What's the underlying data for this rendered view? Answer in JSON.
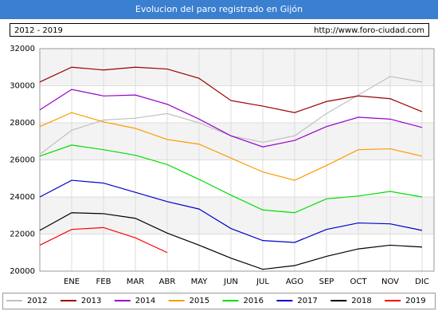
{
  "chart_data": {
    "type": "line",
    "title": "Evolucion del paro registrado en Gijón",
    "subtitle": "2012 - 2019",
    "source": "http://www.foro-ciudad.com",
    "categories": [
      null,
      "ENE",
      "FEB",
      "MAR",
      "ABR",
      "MAY",
      "JUN",
      "JUL",
      "AGO",
      "SEP",
      "OCT",
      "NOV",
      "DIC"
    ],
    "ylim": [
      20000,
      32000
    ],
    "yticks": [
      20000,
      22000,
      24000,
      26000,
      28000,
      30000,
      32000
    ],
    "grid": true,
    "legend": "bottom",
    "series": [
      {
        "name": "2012",
        "color": "#c0c0c0",
        "values": [
          26300,
          27600,
          28150,
          28250,
          28500,
          28000,
          27300,
          26950,
          27300,
          28500,
          29500,
          30500,
          30200
        ]
      },
      {
        "name": "2013",
        "color": "#990000",
        "values": [
          30200,
          31000,
          30850,
          31000,
          30900,
          30400,
          29200,
          28900,
          28550,
          29150,
          29450,
          29300,
          28600
        ]
      },
      {
        "name": "2014",
        "color": "#9900cc",
        "values": [
          28700,
          29800,
          29450,
          29500,
          29000,
          28200,
          27300,
          26700,
          27050,
          27800,
          28300,
          28200,
          27750
        ]
      },
      {
        "name": "2015",
        "color": "#ff9900",
        "values": [
          27800,
          28550,
          28050,
          27700,
          27100,
          26850,
          26100,
          25350,
          24900,
          25700,
          26550,
          26600,
          26200
        ]
      },
      {
        "name": "2016",
        "color": "#00dd00",
        "values": [
          26200,
          26800,
          26550,
          26250,
          25750,
          24950,
          24100,
          23300,
          23150,
          23900,
          24050,
          24300,
          24000
        ]
      },
      {
        "name": "2017",
        "color": "#0000cc",
        "values": [
          24000,
          24900,
          24750,
          24250,
          23750,
          23350,
          22300,
          21650,
          21550,
          22250,
          22600,
          22550,
          22200
        ]
      },
      {
        "name": "2018",
        "color": "#000000",
        "values": [
          22200,
          23150,
          23100,
          22850,
          22050,
          21400,
          20700,
          20100,
          20300,
          20800,
          21200,
          21400,
          21300
        ]
      },
      {
        "name": "2019",
        "color": "#ff0000",
        "values": [
          21400,
          22250,
          22350,
          21800,
          21000,
          null,
          null,
          null,
          null,
          null,
          null,
          null,
          null
        ]
      }
    ]
  }
}
